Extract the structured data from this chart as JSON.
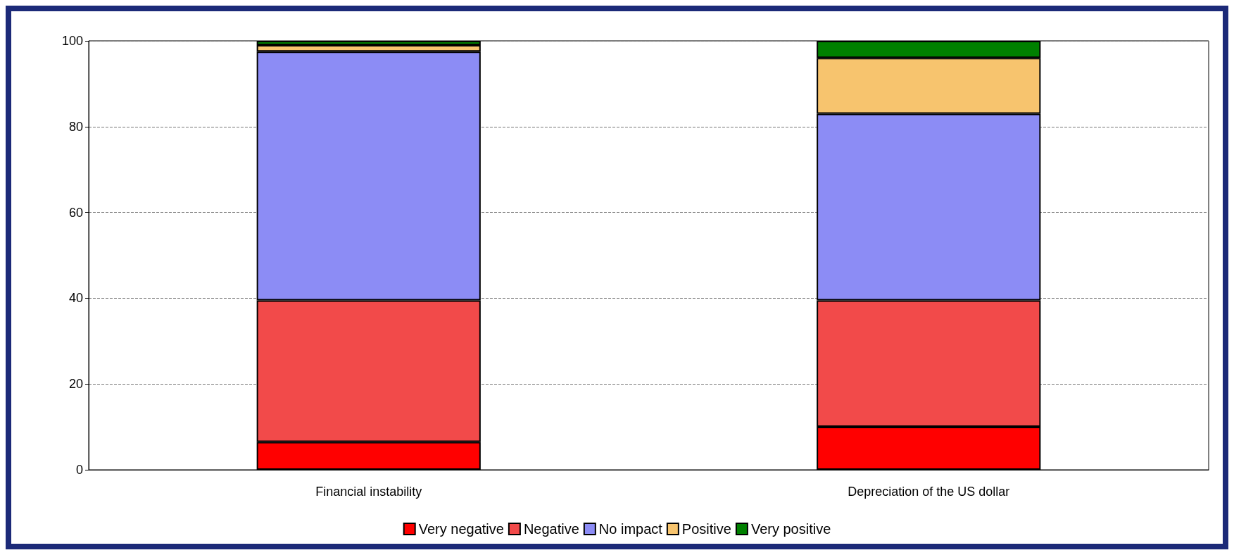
{
  "chart_data": {
    "type": "bar",
    "stacked": true,
    "categories": [
      "Financial instability",
      "Depreciation of the US dollar"
    ],
    "series": [
      {
        "name": "Very negative",
        "color": "#ff0000",
        "values": [
          6.5,
          10
        ]
      },
      {
        "name": "Negative",
        "color": "#f24a4a",
        "values": [
          33,
          29.5
        ]
      },
      {
        "name": "No impact",
        "color": "#8c8cf5",
        "values": [
          58,
          43.5
        ]
      },
      {
        "name": "Positive",
        "color": "#f7c46e",
        "values": [
          1.5,
          13
        ]
      },
      {
        "name": "Very positive",
        "color": "#008000",
        "values": [
          1,
          4
        ]
      }
    ],
    "ylim": [
      0,
      100
    ],
    "yticks": [
      0,
      20,
      40,
      60,
      80,
      100
    ],
    "grid": "y",
    "legend": "bottom"
  }
}
